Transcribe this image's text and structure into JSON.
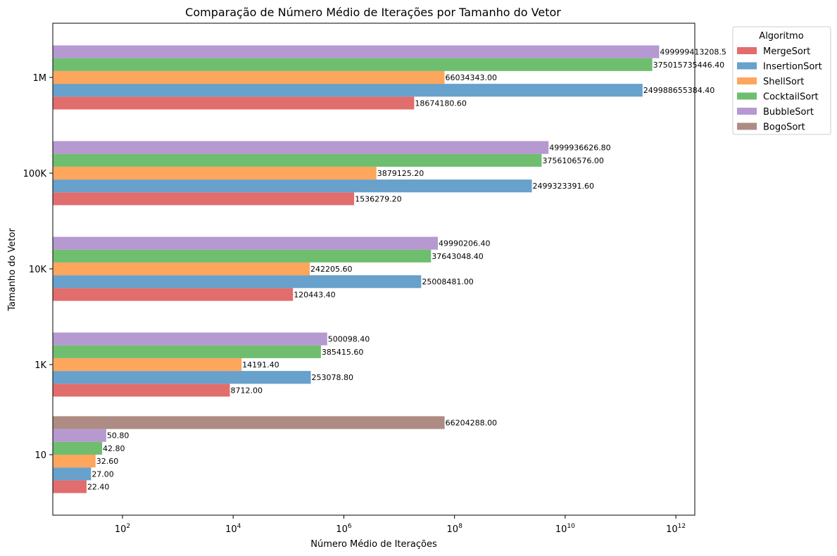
{
  "chart_data": {
    "type": "bar",
    "orientation": "horizontal",
    "title": "Comparação de Número Médio de Iterações por Tamanho do Vetor",
    "xlabel": "Número Médio de Iterações",
    "ylabel": "Tamanho do Vetor",
    "xscale": "log",
    "xlim": [
      5.5,
      2200000000000
    ],
    "x_ticks": [
      {
        "base": "10",
        "exp": "2",
        "value": 100
      },
      {
        "base": "10",
        "exp": "4",
        "value": 10000
      },
      {
        "base": "10",
        "exp": "6",
        "value": 1000000
      },
      {
        "base": "10",
        "exp": "8",
        "value": 100000000
      },
      {
        "base": "10",
        "exp": "10",
        "value": 10000000000
      },
      {
        "base": "10",
        "exp": "12",
        "value": 1000000000000
      }
    ],
    "categories": [
      "10",
      "1K",
      "10K",
      "100K",
      "1M"
    ],
    "legend": {
      "title": "Algoritmo",
      "position": "outside-top-right"
    },
    "grid": false,
    "series": [
      {
        "name": "MergeSort",
        "color": "#dd5353",
        "values": [
          22.4,
          8712.0,
          120443.4,
          1536279.2,
          18674180.6
        ],
        "labels": [
          "22.40",
          "8712.00",
          "120443.40",
          "1536279.20",
          "18674180.60"
        ]
      },
      {
        "name": "InsertionSort",
        "color": "#4c91c3",
        "values": [
          27.0,
          253078.8,
          25008481.0,
          2499323391.6,
          249988655384.4
        ],
        "labels": [
          "27.00",
          "253078.80",
          "25008481.00",
          "2499323391.60",
          "249988655384.40"
        ]
      },
      {
        "name": "ShellSort",
        "color": "#fd963f",
        "values": [
          32.6,
          14191.4,
          242205.6,
          3879125.2,
          66034343.0
        ],
        "labels": [
          "32.60",
          "14191.40",
          "242205.60",
          "3879125.20",
          "66034343.00"
        ]
      },
      {
        "name": "CocktailSort",
        "color": "#56b356",
        "values": [
          42.8,
          385415.6,
          37643048.4,
          3756106576.0,
          375015735446.4
        ],
        "labels": [
          "42.80",
          "385415.60",
          "37643048.40",
          "3756106576.00",
          "375015735446.40"
        ]
      },
      {
        "name": "BubbleSort",
        "color": "#a887c8",
        "values": [
          50.8,
          500098.4,
          49990206.4,
          4999936626.8,
          499999413208.5
        ],
        "labels": [
          "50.80",
          "500098.40",
          "49990206.40",
          "4999936626.80",
          "499999413208.5"
        ]
      },
      {
        "name": "BogoSort",
        "color": "#a0786d",
        "values": [
          66204288.0,
          null,
          null,
          null,
          null
        ],
        "labels": [
          "66204288.00",
          null,
          null,
          null,
          null
        ]
      }
    ]
  }
}
